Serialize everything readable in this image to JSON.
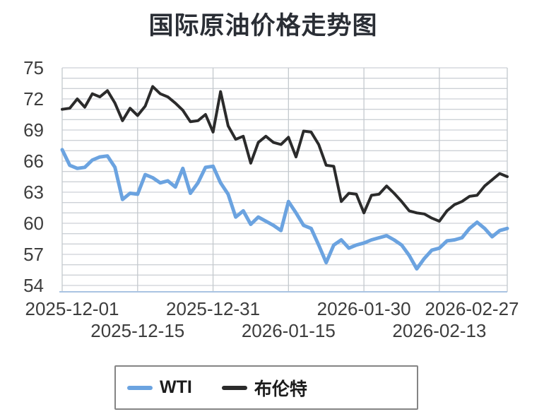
{
  "page": {
    "title": "国际原油价格走势图"
  },
  "chart_data": {
    "type": "line",
    "title": "国际原油价格走势图",
    "x_tick_labels": [
      "2025-12-01",
      "2025-12-15",
      "2025-12-31",
      "2026-01-15",
      "2026-01-30",
      "2026-02-13",
      "2026-02-27"
    ],
    "x_tick_indices": [
      0,
      10,
      20,
      30,
      40,
      50,
      59
    ],
    "ylim": [
      54,
      75
    ],
    "y_tick_step": 3,
    "y_minor_step": 1,
    "grid": true,
    "legend_position": "bottom",
    "grid_color": "#cdd1d6",
    "vgrid_color": "#c4c9ce",
    "axis_line_color": "#a9c3e2",
    "label_color": "#3d3d3d",
    "series": [
      {
        "name": "WTI",
        "color": "#6ba3e0",
        "width": 5,
        "values": [
          67.1,
          65.6,
          65.3,
          65.4,
          66.1,
          66.4,
          66.5,
          65.4,
          62.3,
          62.9,
          62.8,
          64.7,
          64.4,
          63.9,
          64.1,
          63.5,
          65.3,
          62.9,
          63.9,
          65.4,
          65.5,
          63.9,
          62.8,
          60.6,
          61.2,
          59.9,
          60.6,
          60.2,
          59.8,
          59.3,
          62.1,
          61.0,
          59.8,
          59.5,
          57.9,
          56.2,
          57.9,
          58.4,
          57.6,
          57.9,
          58.1,
          58.4,
          58.6,
          58.8,
          58.4,
          57.9,
          56.9,
          55.6,
          56.6,
          57.4,
          57.6,
          58.3,
          58.4,
          58.6,
          59.5,
          60.1,
          59.5,
          58.7,
          59.3,
          59.5
        ]
      },
      {
        "name": "布伦特",
        "color": "#2b2b2b",
        "width": 4,
        "values": [
          71.0,
          71.1,
          72.0,
          71.2,
          72.5,
          72.2,
          72.8,
          71.6,
          69.9,
          71.1,
          70.4,
          71.3,
          73.2,
          72.5,
          72.2,
          71.6,
          70.9,
          69.8,
          69.9,
          70.5,
          68.8,
          72.7,
          69.4,
          68.1,
          68.4,
          65.8,
          67.8,
          68.4,
          67.8,
          67.6,
          68.3,
          66.4,
          68.9,
          68.8,
          67.6,
          65.6,
          65.5,
          62.1,
          62.9,
          62.8,
          61.0,
          62.7,
          62.8,
          63.6,
          62.9,
          62.1,
          61.2,
          61.0,
          60.9,
          60.5,
          60.2,
          61.2,
          61.8,
          62.1,
          62.6,
          62.7,
          63.6,
          64.2,
          64.8,
          64.5
        ]
      }
    ]
  }
}
